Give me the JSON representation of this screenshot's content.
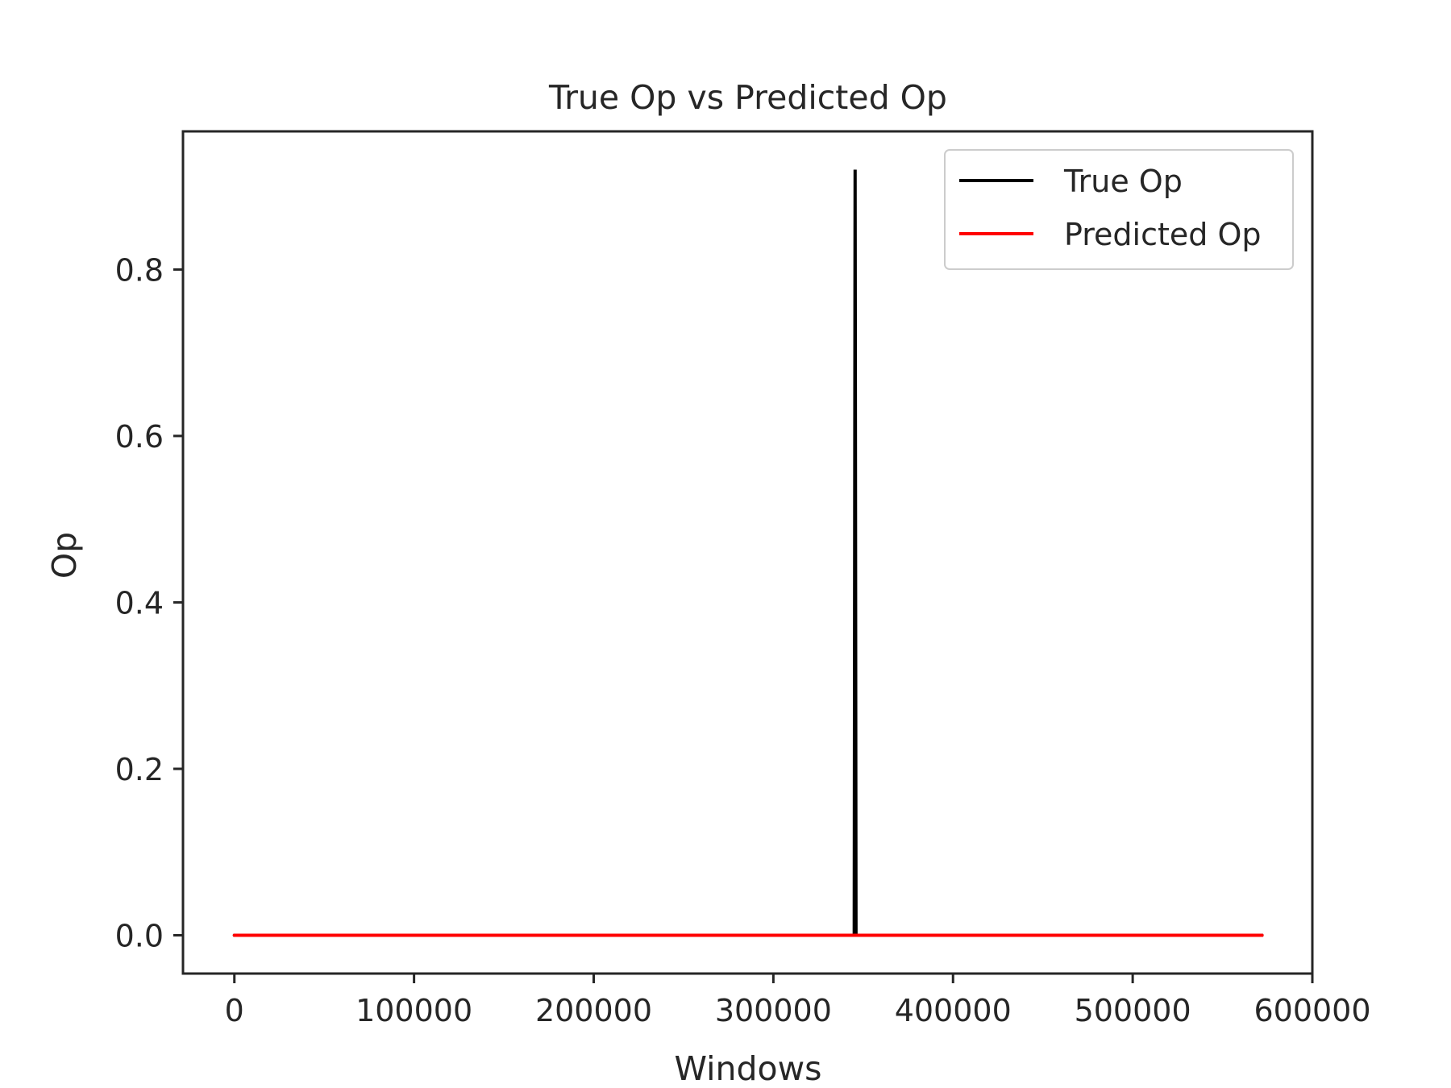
{
  "chart_data": {
    "type": "line",
    "title": "True Op vs Predicted Op",
    "xlabel": "Windows",
    "ylabel": "Op",
    "xlim": [
      -28600,
      600000
    ],
    "ylim": [
      -0.046,
      0.966
    ],
    "x_ticks": [
      0,
      100000,
      200000,
      300000,
      400000,
      500000,
      600000
    ],
    "x_tick_labels": [
      "0",
      "100000",
      "200000",
      "300000",
      "400000",
      "500000",
      "600000"
    ],
    "y_ticks": [
      0.0,
      0.2,
      0.4,
      0.6,
      0.8
    ],
    "y_tick_labels": [
      "0.0",
      "0.2",
      "0.4",
      "0.6",
      "0.8"
    ],
    "grid": false,
    "legend_position": "upper right",
    "series": [
      {
        "name": "True Op",
        "color": "#000000",
        "x": [
          0,
          345000,
          345500,
          346000,
          572000
        ],
        "y": [
          0,
          0,
          0.92,
          0,
          0
        ]
      },
      {
        "name": "Predicted Op",
        "color": "#ff0000",
        "x": [
          0,
          572000
        ],
        "y": [
          0,
          0
        ]
      }
    ]
  }
}
